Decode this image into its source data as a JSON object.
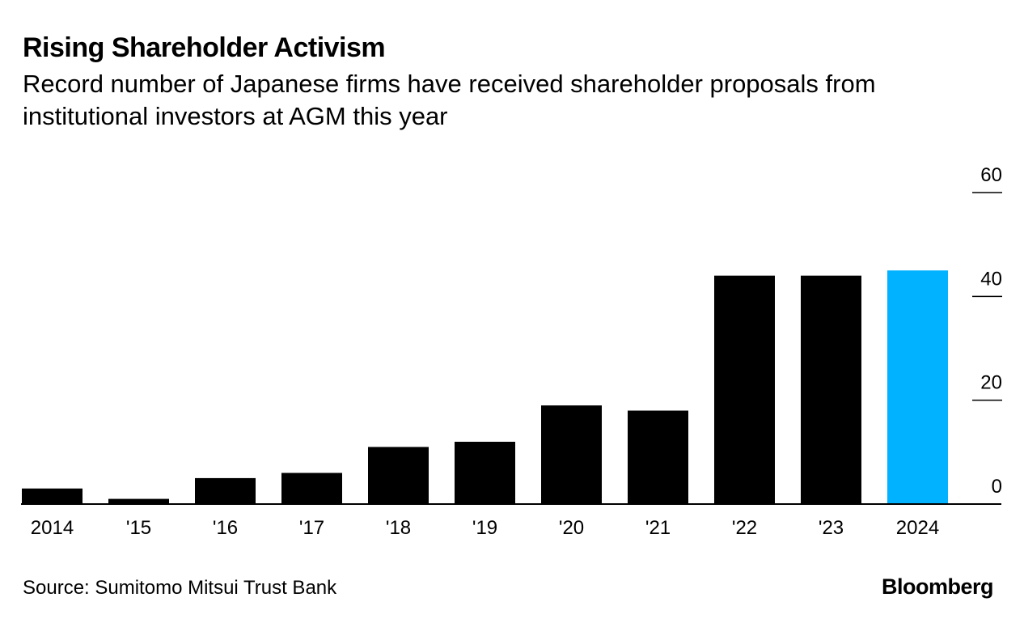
{
  "header": {
    "title": "Rising Shareholder Activism",
    "subtitle": "Record number of Japanese firms have received shareholder proposals from institutional investors at AGM this year"
  },
  "footer": {
    "source": "Source: Sumitomo Mitsui Trust Bank",
    "brand": "Bloomberg"
  },
  "colors": {
    "bar_default": "#000000",
    "bar_highlight": "#00b2ff",
    "axis": "#000000"
  },
  "chart_data": {
    "type": "bar",
    "title": "Rising Shareholder Activism",
    "subtitle": "Record number of Japanese firms have received shareholder proposals from institutional investors at AGM this year",
    "categories": [
      "2014",
      "'15",
      "'16",
      "'17",
      "'18",
      "'19",
      "'20",
      "'21",
      "'22",
      "'23",
      "2024"
    ],
    "values": [
      3,
      1,
      5,
      6,
      11,
      12,
      19,
      18,
      44,
      44,
      45
    ],
    "highlight_index": 10,
    "xlabel": "",
    "ylabel": "",
    "ylim": [
      0,
      60
    ],
    "yticks": [
      0,
      20,
      40,
      60
    ],
    "y_axis_position": "right",
    "grid": false,
    "legend": "none"
  }
}
